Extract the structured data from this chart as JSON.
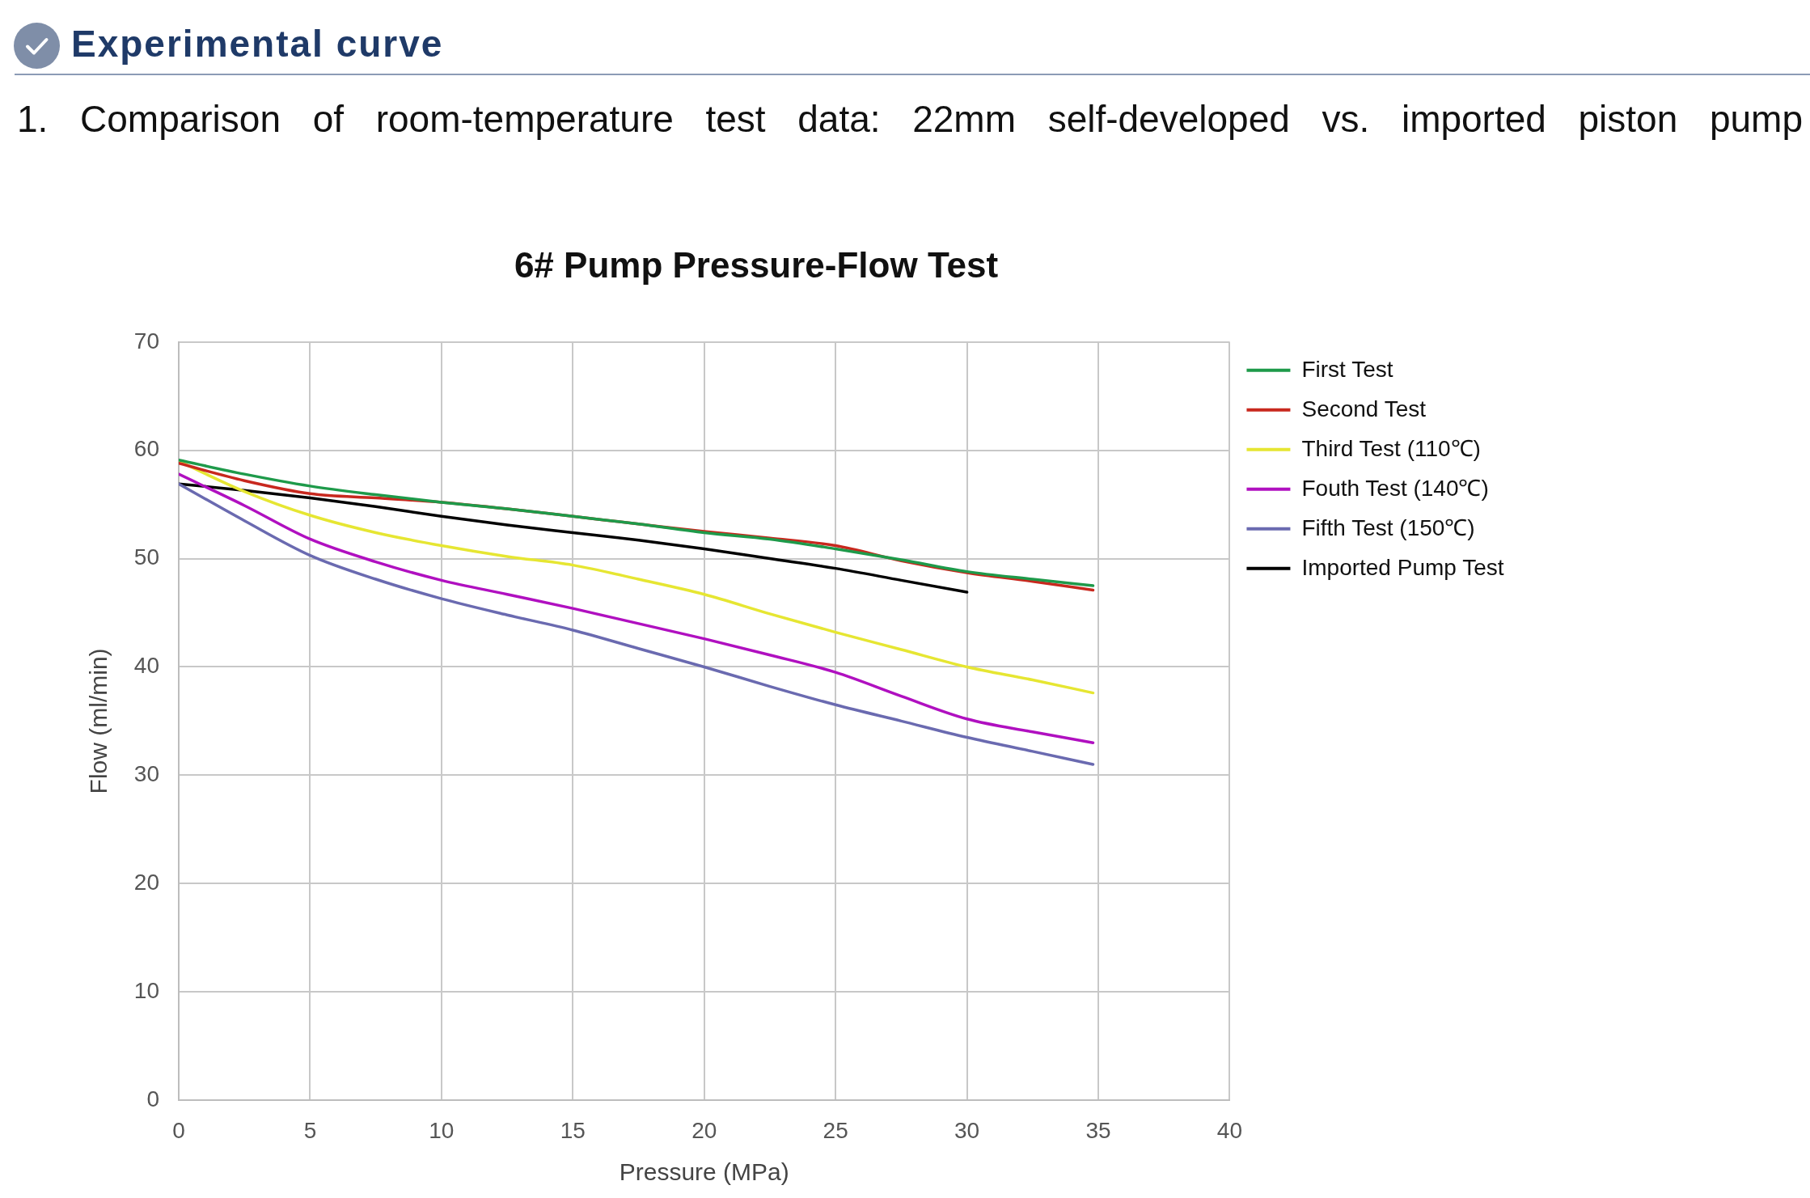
{
  "chart_data": {
    "type": "line",
    "title": "6# Pump Pressure-Flow Test",
    "xlabel": "Pressure (MPa)",
    "ylabel": "Flow (ml/min)",
    "annotations": [
      "Experimental curve",
      "1. Comparison of room-temperature test data: 22mm self-developed vs. imported piston pump"
    ],
    "x": [
      0,
      2.5,
      5,
      7.5,
      10,
      12.5,
      15,
      17.5,
      20,
      22.5,
      25,
      27.5,
      30,
      32.5,
      34.8
    ],
    "series": [
      {
        "name": "First Test",
        "color": "#1e9a4a",
        "values": [
          59.1,
          57.8,
          56.7,
          55.9,
          55.2,
          54.6,
          53.9,
          53.2,
          52.4,
          51.8,
          50.9,
          49.9,
          48.8,
          48.1,
          47.5
        ]
      },
      {
        "name": "Second Test",
        "color": "#c8281e",
        "values": [
          58.8,
          57.2,
          56.0,
          55.6,
          55.2,
          54.6,
          53.9,
          53.2,
          52.5,
          51.9,
          51.2,
          49.8,
          48.7,
          47.9,
          47.1
        ]
      },
      {
        "name": "Third Test (110℃)",
        "color": "#e6e632",
        "values": [
          59.0,
          56.2,
          54.0,
          52.4,
          51.2,
          50.2,
          49.4,
          48.1,
          46.7,
          44.9,
          43.2,
          41.6,
          40.0,
          38.8,
          37.6
        ]
      },
      {
        "name": "Fouth Test (140℃)",
        "color": "#b010c0",
        "values": [
          57.8,
          54.9,
          51.8,
          49.7,
          48.0,
          46.7,
          45.4,
          44.0,
          42.6,
          41.1,
          39.5,
          37.3,
          35.2,
          34.0,
          33.0
        ]
      },
      {
        "name": "Fifth Test (150℃)",
        "color": "#6a6ab0",
        "values": [
          56.9,
          53.5,
          50.3,
          48.1,
          46.3,
          44.8,
          43.4,
          41.7,
          40.0,
          38.2,
          36.5,
          35.0,
          33.5,
          32.2,
          31.0
        ]
      },
      {
        "name": "Imported Pump Test",
        "color": "#000000",
        "x": [
          0,
          2.5,
          5,
          7.5,
          10,
          12.5,
          15,
          17.5,
          20,
          22.5,
          25,
          27.5,
          30
        ],
        "values": [
          56.9,
          56.3,
          55.6,
          54.8,
          53.9,
          53.1,
          52.4,
          51.7,
          50.9,
          50.0,
          49.1,
          48.0,
          46.9
        ]
      }
    ],
    "xlim": [
      0,
      40
    ],
    "ylim": [
      0,
      70
    ],
    "xticks": [
      0,
      5,
      10,
      15,
      20,
      25,
      30,
      35,
      40
    ],
    "yticks": [
      0,
      10,
      20,
      30,
      40,
      50,
      60,
      70
    ],
    "grid": true,
    "legend": "top right",
    "marker": "none",
    "line_style": "solid"
  }
}
